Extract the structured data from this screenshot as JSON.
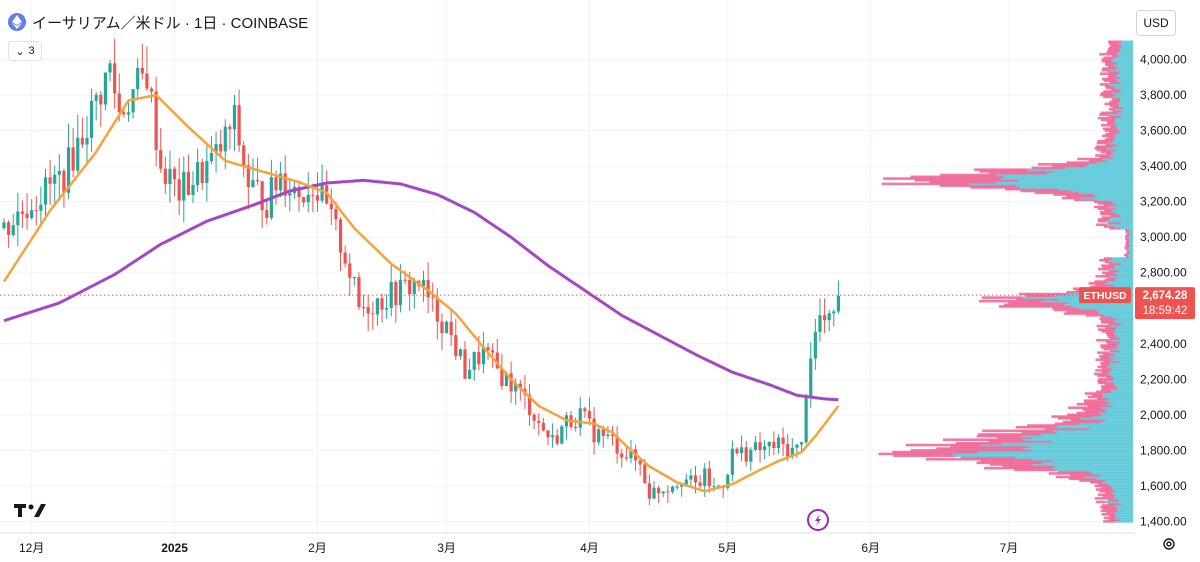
{
  "header": {
    "title": "イーサリアム／米ドル · 1日 · COINBASE",
    "currency": "USD",
    "indicator_count": "3"
  },
  "colors": {
    "up": "#26a69a",
    "down": "#ef5350",
    "ma_short": "#f7a23b",
    "ma_long": "#a348c4",
    "vp_up": "#5ac8d8",
    "vp_down": "#f06292",
    "price_tag": "#ef5350"
  },
  "chart_data": {
    "type": "candlestick",
    "symbol": "ETHUSD",
    "last_price": "2,674.28",
    "countdown": "18:59:42",
    "y_ticks": [
      "4,000.00",
      "3,800.00",
      "3,600.00",
      "3,400.00",
      "3,200.00",
      "3,000.00",
      "2,800.00",
      "2,600.00",
      "2,400.00",
      "2,200.00",
      "2,000.00",
      "1,800.00",
      "1,600.00",
      "1,400.00"
    ],
    "ylim": [
      1380,
      4110
    ],
    "x_labels": [
      {
        "label": "12月",
        "day": 6
      },
      {
        "label": "2025",
        "day": 37
      },
      {
        "label": "2月",
        "day": 68
      },
      {
        "label": "3月",
        "day": 96
      },
      {
        "label": "4月",
        "day": 127
      },
      {
        "label": "5月",
        "day": 157
      },
      {
        "label": "6月",
        "day": 188
      },
      {
        "label": "7月",
        "day": 218
      }
    ],
    "keypoints": [
      [
        0,
        3050
      ],
      [
        6,
        3200
      ],
      [
        13,
        3350
      ],
      [
        19,
        3700
      ],
      [
        23,
        3950
      ],
      [
        25,
        3700
      ],
      [
        29,
        3850
      ],
      [
        31,
        3920
      ],
      [
        34,
        3400
      ],
      [
        38,
        3250
      ],
      [
        42,
        3350
      ],
      [
        46,
        3450
      ],
      [
        50,
        3650
      ],
      [
        53,
        3300
      ],
      [
        57,
        3200
      ],
      [
        60,
        3350
      ],
      [
        64,
        3250
      ],
      [
        67,
        3300
      ],
      [
        70,
        3150
      ],
      [
        74,
        2900
      ],
      [
        77,
        2600
      ],
      [
        82,
        2650
      ],
      [
        86,
        2700
      ],
      [
        90,
        2750
      ],
      [
        93,
        2600
      ],
      [
        96,
        2500
      ],
      [
        100,
        2250
      ],
      [
        104,
        2350
      ],
      [
        107,
        2250
      ],
      [
        111,
        2150
      ],
      [
        114,
        2050
      ],
      [
        116,
        1950
      ],
      [
        119,
        1850
      ],
      [
        122,
        1960
      ],
      [
        125,
        2000
      ],
      [
        128,
        1900
      ],
      [
        130,
        1880
      ],
      [
        132,
        1850
      ],
      [
        134,
        1800
      ],
      [
        138,
        1720
      ],
      [
        140,
        1560
      ],
      [
        144,
        1600
      ],
      [
        147,
        1650
      ],
      [
        150,
        1600
      ],
      [
        152,
        1650
      ],
      [
        154,
        1580
      ],
      [
        156,
        1620
      ],
      [
        158,
        1780
      ],
      [
        161,
        1790
      ],
      [
        165,
        1810
      ],
      [
        168,
        1830
      ],
      [
        171,
        1800
      ],
      [
        173,
        1820
      ],
      [
        174,
        2150
      ],
      [
        175,
        2350
      ],
      [
        177,
        2550
      ],
      [
        179,
        2500
      ],
      [
        180,
        2620
      ],
      [
        181,
        2670
      ]
    ],
    "ma_short_points": [
      [
        0,
        2750
      ],
      [
        10,
        3150
      ],
      [
        20,
        3480
      ],
      [
        27,
        3770
      ],
      [
        33,
        3800
      ],
      [
        40,
        3620
      ],
      [
        48,
        3430
      ],
      [
        56,
        3370
      ],
      [
        64,
        3310
      ],
      [
        70,
        3250
      ],
      [
        76,
        3050
      ],
      [
        84,
        2850
      ],
      [
        92,
        2700
      ],
      [
        98,
        2570
      ],
      [
        104,
        2380
      ],
      [
        110,
        2200
      ],
      [
        116,
        2050
      ],
      [
        122,
        1970
      ],
      [
        128,
        1950
      ],
      [
        132,
        1900
      ],
      [
        136,
        1800
      ],
      [
        140,
        1710
      ],
      [
        146,
        1620
      ],
      [
        152,
        1570
      ],
      [
        158,
        1610
      ],
      [
        164,
        1690
      ],
      [
        168,
        1740
      ],
      [
        173,
        1790
      ],
      [
        176,
        1880
      ],
      [
        181,
        2050
      ]
    ],
    "ma_long_points": [
      [
        0,
        2530
      ],
      [
        12,
        2630
      ],
      [
        24,
        2790
      ],
      [
        34,
        2960
      ],
      [
        44,
        3090
      ],
      [
        54,
        3180
      ],
      [
        62,
        3260
      ],
      [
        70,
        3305
      ],
      [
        78,
        3320
      ],
      [
        86,
        3300
      ],
      [
        94,
        3240
      ],
      [
        102,
        3140
      ],
      [
        110,
        3000
      ],
      [
        118,
        2840
      ],
      [
        126,
        2700
      ],
      [
        134,
        2560
      ],
      [
        142,
        2450
      ],
      [
        150,
        2340
      ],
      [
        158,
        2240
      ],
      [
        166,
        2170
      ],
      [
        172,
        2110
      ],
      [
        178,
        2090
      ],
      [
        181,
        2085
      ]
    ]
  }
}
